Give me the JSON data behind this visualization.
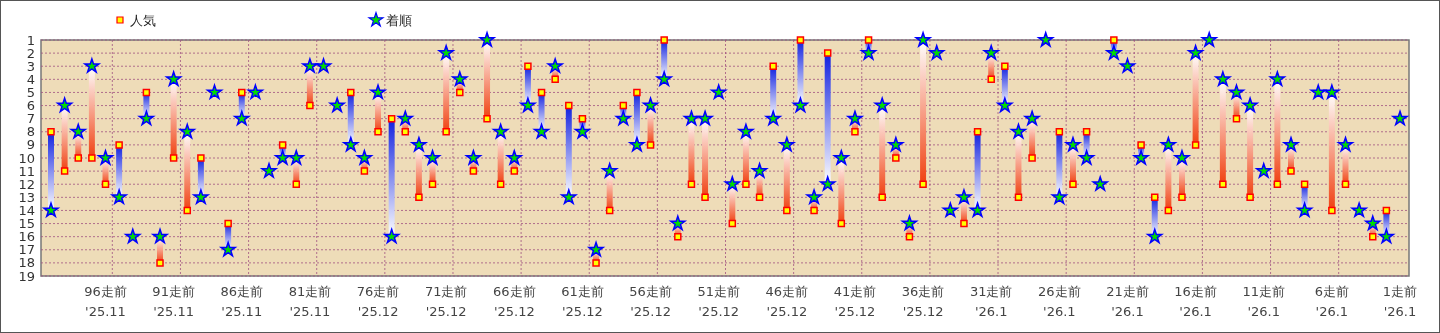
{
  "chart_data": {
    "type": "scatter",
    "categories": [
      null,
      null,
      null,
      null,
      "96走前\n'25.11",
      null,
      null,
      null,
      null,
      "91走前\n'25.11",
      null,
      null,
      null,
      null,
      "86走前\n'25.11",
      null,
      null,
      null,
      null,
      "81走前\n'25.11",
      null,
      null,
      null,
      null,
      "76走前\n'25.12",
      null,
      null,
      null,
      null,
      "71走前\n'25.12",
      null,
      null,
      null,
      null,
      "66走前\n'25.12",
      null,
      null,
      null,
      null,
      "61走前\n'25.12",
      null,
      null,
      null,
      null,
      "56走前\n'25.12",
      null,
      null,
      null,
      null,
      "51走前\n'25.12",
      null,
      null,
      null,
      null,
      "46走前\n'25.12",
      null,
      null,
      null,
      null,
      "41走前\n'25.12",
      null,
      null,
      null,
      null,
      "36走前\n'25.12",
      null,
      null,
      null,
      null,
      "31走前\n'26.1",
      null,
      null,
      null,
      null,
      "26走前\n'26.1",
      null,
      null,
      null,
      null,
      "21走前\n'26.1",
      null,
      null,
      null,
      null,
      "16走前\n'26.1",
      null,
      null,
      null,
      null,
      "11走前\n'26.1",
      null,
      null,
      null,
      null,
      "6走前\n'26.1",
      null,
      null,
      null,
      null,
      "1走前\n'26.1"
    ],
    "series": [
      {
        "name": "人気",
        "color": "#ff0000",
        "marker": "square",
        "values": [
          8,
          11,
          10,
          10,
          12,
          9,
          null,
          5,
          18,
          10,
          14,
          10,
          null,
          15,
          5,
          null,
          null,
          9,
          12,
          6,
          null,
          null,
          5,
          11,
          8,
          7,
          8,
          13,
          12,
          8,
          5,
          11,
          7,
          12,
          11,
          3,
          5,
          4,
          6,
          7,
          18,
          14,
          6,
          5,
          9,
          1,
          16,
          12,
          13,
          null,
          15,
          12,
          13,
          3,
          14,
          1,
          14,
          2,
          15,
          8,
          1,
          13,
          10,
          16,
          12,
          null,
          null,
          15,
          8,
          4,
          3,
          13,
          10,
          null,
          8,
          12,
          8,
          null,
          1,
          null,
          9,
          13,
          14,
          13,
          9,
          null,
          12,
          7,
          13,
          null,
          12,
          11,
          12,
          null,
          14,
          12,
          null,
          16,
          14,
          null
        ]
      },
      {
        "name": "着順",
        "color": "#0000ff",
        "marker": "star",
        "values": [
          14,
          6,
          8,
          3,
          10,
          13,
          16,
          7,
          16,
          4,
          8,
          13,
          5,
          17,
          7,
          5,
          11,
          10,
          10,
          3,
          3,
          6,
          9,
          10,
          5,
          16,
          7,
          9,
          10,
          2,
          4,
          10,
          1,
          8,
          10,
          6,
          8,
          3,
          13,
          8,
          17,
          11,
          7,
          9,
          6,
          4,
          15,
          7,
          7,
          5,
          12,
          8,
          11,
          7,
          9,
          6,
          13,
          12,
          10,
          7,
          2,
          6,
          9,
          15,
          1,
          2,
          14,
          13,
          14,
          2,
          6,
          8,
          7,
          1,
          13,
          9,
          10,
          12,
          2,
          3,
          10,
          16,
          9,
          10,
          2,
          1,
          4,
          5,
          6,
          11,
          4,
          9,
          14,
          5,
          5,
          9,
          14,
          15,
          16,
          7
        ]
      }
    ],
    "ylim": [
      19,
      1
    ],
    "yticks": [
      1,
      2,
      3,
      4,
      5,
      6,
      7,
      8,
      9,
      10,
      11,
      12,
      13,
      14,
      15,
      16,
      17,
      18,
      19
    ],
    "grid": true,
    "legend": "top left"
  }
}
